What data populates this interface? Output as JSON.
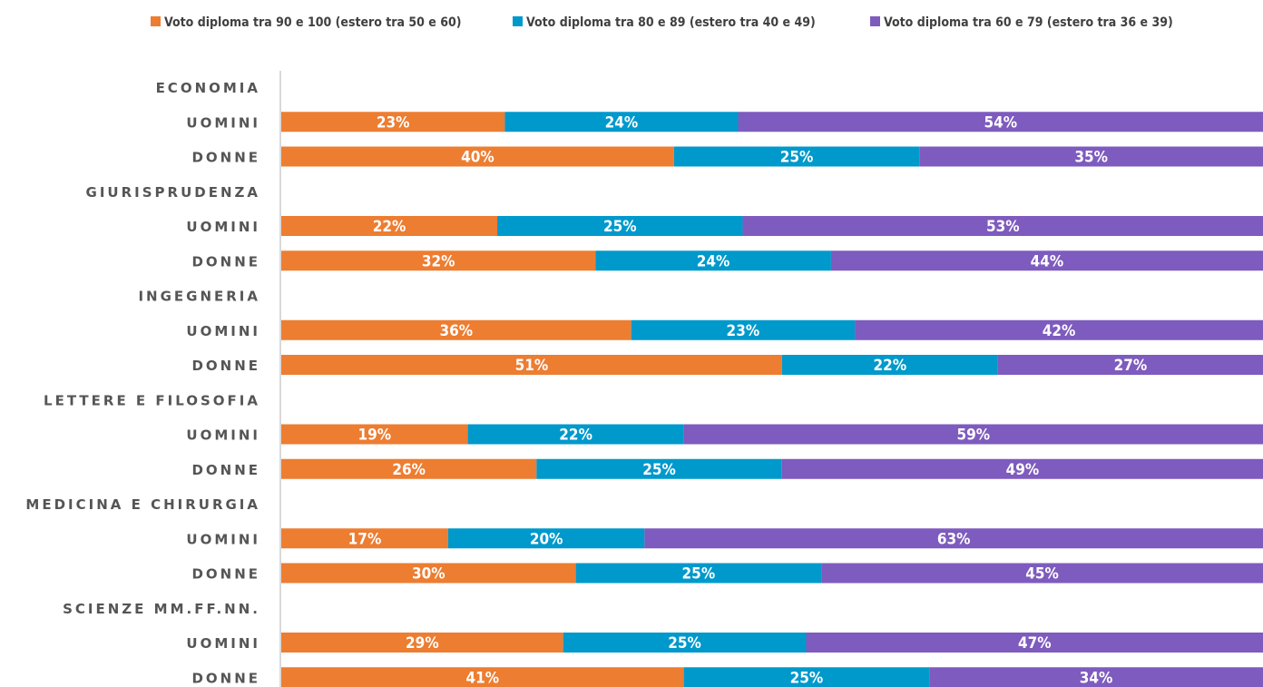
{
  "chart_data": {
    "type": "bar",
    "orientation": "horizontal",
    "stacked": true,
    "legend_position": "top",
    "colors": [
      "#ED7D31",
      "#0099CC",
      "#7E5BBE"
    ],
    "series": [
      {
        "name": "Voto diploma tra 90 e 100 (estero tra 50 e 60)"
      },
      {
        "name": "Voto diploma tra 80 e 89 (estero tra 40 e 49)"
      },
      {
        "name": "Voto diploma tra 60 e 79 (estero tra 36 e 39)"
      }
    ],
    "groups": [
      {
        "name": "ECONOMIA",
        "rows": [
          {
            "label": "UOMINI",
            "values": [
              23,
              24,
              54
            ]
          },
          {
            "label": "DONNE",
            "values": [
              40,
              25,
              35
            ]
          }
        ]
      },
      {
        "name": "GIURISPRUDENZA",
        "rows": [
          {
            "label": "UOMINI",
            "values": [
              22,
              25,
              53
            ]
          },
          {
            "label": "DONNE",
            "values": [
              32,
              24,
              44
            ]
          }
        ]
      },
      {
        "name": "INGEGNERIA",
        "rows": [
          {
            "label": "UOMINI",
            "values": [
              36,
              23,
              42
            ]
          },
          {
            "label": "DONNE",
            "values": [
              51,
              22,
              27
            ]
          }
        ]
      },
      {
        "name": "LETTERE E FILOSOFIA",
        "rows": [
          {
            "label": "UOMINI",
            "values": [
              19,
              22,
              59
            ]
          },
          {
            "label": "DONNE",
            "values": [
              26,
              25,
              49
            ]
          }
        ]
      },
      {
        "name": "MEDICINA E CHIRURGIA",
        "rows": [
          {
            "label": "UOMINI",
            "values": [
              17,
              20,
              63
            ]
          },
          {
            "label": "DONNE",
            "values": [
              30,
              25,
              45
            ]
          }
        ]
      },
      {
        "name": "SCIENZE MM.FF.NN.",
        "rows": [
          {
            "label": "UOMINI",
            "values": [
              29,
              25,
              47
            ]
          },
          {
            "label": "DONNE",
            "values": [
              41,
              25,
              34
            ]
          }
        ]
      }
    ],
    "value_suffix": "%"
  }
}
